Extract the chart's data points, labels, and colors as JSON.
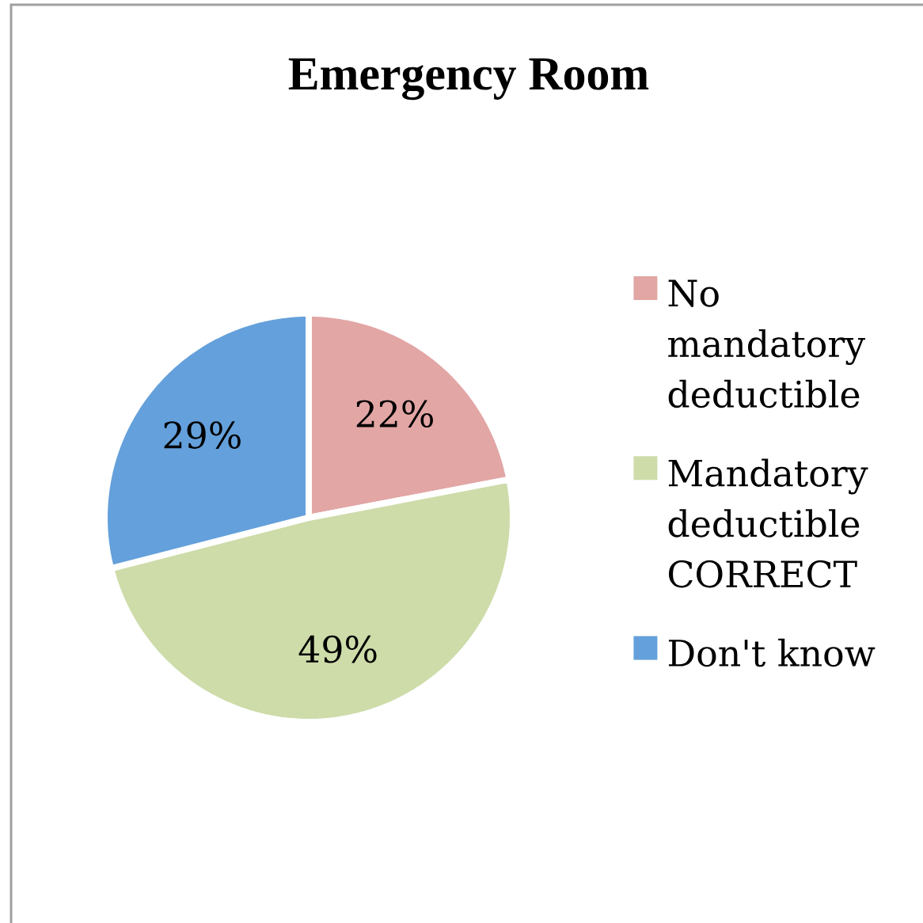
{
  "chart_data": {
    "type": "pie",
    "title": "Emergency Room",
    "categories": [
      "No mandatory deductible",
      "Mandatory deductible CORRECT",
      "Don't know"
    ],
    "values": [
      22,
      49,
      29
    ],
    "colors": [
      "#e2a6a5",
      "#cddca9",
      "#64a0db"
    ],
    "value_labels": [
      "22%",
      "49%",
      "29%"
    ],
    "legend": "right"
  }
}
